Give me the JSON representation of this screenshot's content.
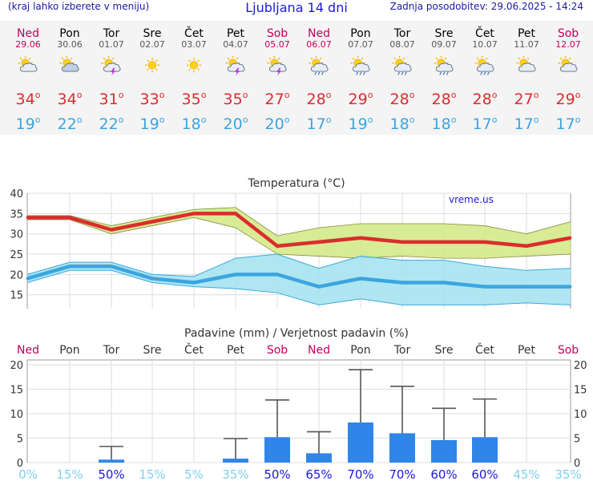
{
  "header": {
    "left_text": "(kraj lahko izberete v meniju)",
    "title": "Ljubljana 14 dni",
    "right_text": "Zadnja posodobitev: 29.06.2025 - 14:24"
  },
  "degree_symbol": "o",
  "days": [
    {
      "name": "Ned",
      "date": "29.06",
      "weekend": true,
      "icon": "sun-cloud-icon",
      "tmax": "34",
      "tmin": "19"
    },
    {
      "name": "Pon",
      "date": "30.06",
      "weekend": false,
      "icon": "cloud-sun-icon",
      "tmax": "34",
      "tmin": "22"
    },
    {
      "name": "Tor",
      "date": "01.07",
      "weekend": false,
      "icon": "sun-cloud-lightning-icon",
      "tmax": "31",
      "tmin": "22"
    },
    {
      "name": "Sre",
      "date": "02.07",
      "weekend": false,
      "icon": "sun-icon",
      "tmax": "33",
      "tmin": "19"
    },
    {
      "name": "Čet",
      "date": "03.07",
      "weekend": false,
      "icon": "sun-icon",
      "tmax": "35",
      "tmin": "18"
    },
    {
      "name": "Pet",
      "date": "04.07",
      "weekend": false,
      "icon": "sun-cloud-lightning-icon",
      "tmax": "35",
      "tmin": "20"
    },
    {
      "name": "Sob",
      "date": "05.07",
      "weekend": true,
      "icon": "sun-cloud-lightning-icon",
      "tmax": "27",
      "tmin": "20"
    },
    {
      "name": "Ned",
      "date": "06.07",
      "weekend": true,
      "icon": "sun-cloud-rain-icon",
      "tmax": "28",
      "tmin": "17"
    },
    {
      "name": "Pon",
      "date": "07.07",
      "weekend": false,
      "icon": "sun-cloud-rain-icon",
      "tmax": "29",
      "tmin": "19"
    },
    {
      "name": "Tor",
      "date": "08.07",
      "weekend": false,
      "icon": "sun-cloud-rain-icon",
      "tmax": "28",
      "tmin": "18"
    },
    {
      "name": "Sre",
      "date": "09.07",
      "weekend": false,
      "icon": "sun-cloud-rain-icon",
      "tmax": "28",
      "tmin": "18"
    },
    {
      "name": "Čet",
      "date": "10.07",
      "weekend": false,
      "icon": "sun-cloud-rain-icon",
      "tmax": "28",
      "tmin": "17"
    },
    {
      "name": "Pet",
      "date": "11.07",
      "weekend": false,
      "icon": "sun-cloud-icon",
      "tmax": "27",
      "tmin": "17"
    },
    {
      "name": "Sob",
      "date": "12.07",
      "weekend": true,
      "icon": "sun-cloud-icon",
      "tmax": "29",
      "tmin": "17"
    }
  ],
  "colors": {
    "weekend": "#c0005a",
    "weekday": "#555555",
    "tmax": "#d92d2d",
    "tmin": "#3ba5e0",
    "max_band": "#d4e98a",
    "min_band": "#a6e3ef",
    "precip_bar": "#2f86e8",
    "prob_high": "#1a1ae0",
    "prob_low": "#7fd0f0"
  },
  "chart_data": [
    {
      "type": "line",
      "title": "Temperatura (°C)",
      "watermark": "vreme.us",
      "ylim": [
        11,
        40
      ],
      "yticks": [
        15,
        20,
        25,
        30,
        35,
        40
      ],
      "grid": true,
      "series": [
        {
          "values": [
            34,
            34,
            31,
            33,
            35,
            35,
            27,
            28,
            29,
            28,
            28,
            28,
            27,
            29
          ]
        },
        {
          "values": [
            34.5,
            34.5,
            32,
            34,
            36,
            36.5,
            29.5,
            31.5,
            32.5,
            32.5,
            32.5,
            32,
            30,
            33
          ]
        },
        {
          "values": [
            33.5,
            33.5,
            30,
            32,
            34,
            31.5,
            25,
            24.5,
            24,
            24.5,
            24,
            24,
            24.5,
            25
          ]
        },
        {
          "values": [
            19,
            22,
            22,
            19,
            18,
            20,
            20,
            17,
            19,
            18,
            18,
            17,
            17,
            17
          ]
        },
        {
          "values": [
            20,
            23,
            23,
            20,
            19.5,
            24,
            25,
            21.5,
            24.5,
            23.5,
            23.5,
            22,
            21,
            21.5
          ]
        },
        {
          "values": [
            18,
            21,
            21,
            18,
            17,
            16.5,
            15.5,
            12.5,
            14,
            12.5,
            12.5,
            12.5,
            13,
            12.5
          ]
        }
      ]
    },
    {
      "type": "bar",
      "title": "Padavine (mm) / Verjetnost padavin (%)",
      "ylim": [
        0,
        21
      ],
      "yticks": [
        0,
        5,
        10,
        15,
        20
      ],
      "categories": [
        "Ned",
        "Pon",
        "Tor",
        "Sre",
        "Čet",
        "Pet",
        "Sob",
        "Ned",
        "Pon",
        "Tor",
        "Sre",
        "Čet",
        "Pet",
        "Sob"
      ],
      "values": [
        0,
        0,
        0.6,
        0,
        0,
        0.8,
        5.2,
        1.9,
        8.2,
        6.0,
        4.6,
        5.2,
        0,
        0
      ],
      "error_high": [
        0,
        0,
        3.3,
        0,
        0,
        4.9,
        12.8,
        6.3,
        19.0,
        15.6,
        11.1,
        13.0,
        0,
        0
      ],
      "probability": [
        "0%",
        "15%",
        "50%",
        "15%",
        "5%",
        "35%",
        "50%",
        "65%",
        "70%",
        "70%",
        "60%",
        "60%",
        "45%",
        "35%"
      ],
      "probability_values": [
        0,
        15,
        50,
        15,
        5,
        35,
        50,
        65,
        70,
        70,
        60,
        60,
        45,
        35
      ]
    }
  ]
}
